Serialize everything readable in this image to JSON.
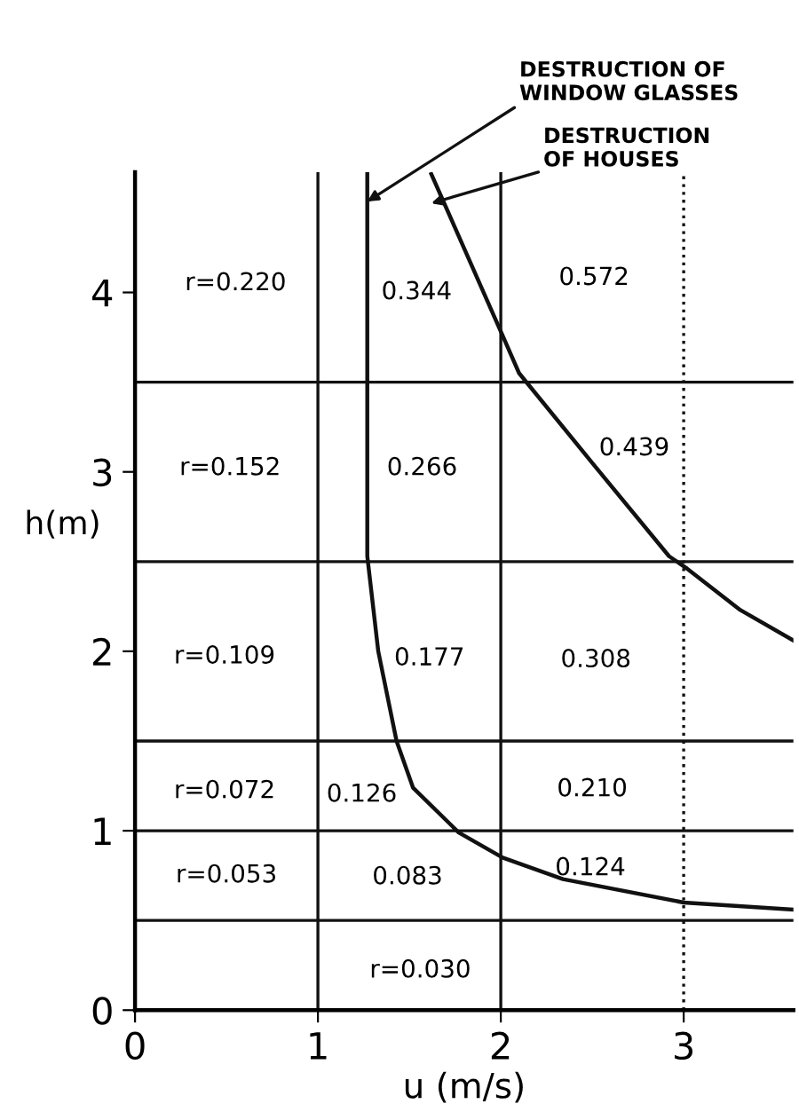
{
  "chart_data": {
    "type": "line",
    "xlabel": "u (m/s)",
    "ylabel": "h(m)",
    "xlim": [
      0,
      3.6
    ],
    "ylim": [
      0,
      4.67
    ],
    "xticks": [
      0,
      1,
      2,
      3
    ],
    "yticks": [
      0,
      1,
      2,
      3,
      4
    ],
    "grid": false,
    "legend": false,
    "marker": "none",
    "series": [
      {
        "name": "DESTRUCTION OF\nWINDOW GLASSES",
        "color": "#111111",
        "x": [
          1.27,
          1.27,
          1.33,
          1.43,
          1.52,
          1.77,
          2.01,
          2.34,
          3.0,
          3.6
        ],
        "values": [
          4.67,
          2.53,
          2.0,
          1.5,
          1.24,
          0.99,
          0.85,
          0.73,
          0.6,
          0.56
        ]
      },
      {
        "name": "DESTRUCTION\nOF HOUSES",
        "color": "#111111",
        "x": [
          1.62,
          2.01,
          2.1,
          2.5,
          2.92,
          3.02,
          3.31,
          3.6
        ],
        "values": [
          4.66,
          3.76,
          3.55,
          3.05,
          2.53,
          2.46,
          2.23,
          2.06
        ]
      }
    ],
    "ref_lines": [
      {
        "axis": "x",
        "value": 1,
        "color": "#111111",
        "line_style": "solid"
      },
      {
        "axis": "x",
        "value": 2,
        "color": "#111111",
        "line_style": "solid"
      },
      {
        "axis": "x",
        "value": 3,
        "color": "#111111",
        "line_style": "dotted"
      },
      {
        "axis": "y",
        "value": 0.5,
        "color": "#111111",
        "line_style": "solid"
      },
      {
        "axis": "y",
        "value": 1,
        "color": "#111111",
        "line_style": "solid"
      },
      {
        "axis": "y",
        "value": 1.5,
        "color": "#111111",
        "line_style": "solid"
      },
      {
        "axis": "y",
        "value": 2.5,
        "color": "#111111",
        "line_style": "solid"
      },
      {
        "axis": "y",
        "value": 3.5,
        "color": "#111111",
        "line_style": "solid"
      }
    ],
    "annotations": [
      "r=0.220",
      "0.344",
      "0.572",
      "r=0.152",
      "0.266",
      "0.439",
      "r=0.109",
      "0.177",
      "0.308",
      "r=0.072",
      "0.126",
      "0.210",
      "r=0.053",
      "0.083",
      "0.124",
      "r=0.030"
    ]
  }
}
